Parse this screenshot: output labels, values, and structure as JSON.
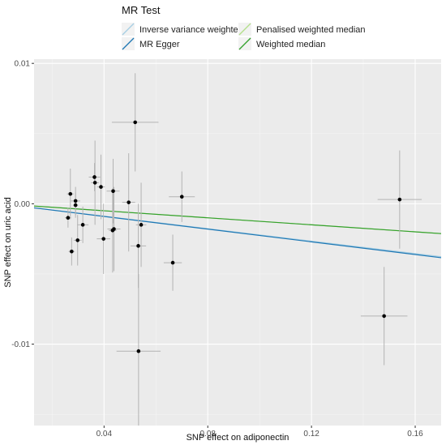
{
  "chart_data": {
    "type": "scatter",
    "title": "",
    "xlabel": "SNP effect on adiponectin",
    "ylabel": "SNP effect on uric acid",
    "xlim": [
      0.013,
      0.17
    ],
    "ylim": [
      -0.0158,
      0.0103
    ],
    "x_ticks": [
      0.04,
      0.08,
      0.12,
      0.16
    ],
    "x_tick_labels": [
      "0.04",
      "0.08",
      "0.12",
      "0.16"
    ],
    "y_ticks": [
      -0.01,
      0.0,
      0.01
    ],
    "y_tick_labels": [
      "-0.01",
      "0.00",
      "0.01"
    ],
    "grid": true,
    "legend": {
      "title": "MR Test",
      "placement": "top",
      "entries": [
        {
          "name": "Inverse variance weighted",
          "color": "#a6cee3"
        },
        {
          "name": "MR Egger",
          "color": "#1f78b4"
        },
        {
          "name": "Penalised weighted median",
          "color": "#b2df8a"
        },
        {
          "name": "Weighted median",
          "color": "#33a02c"
        }
      ]
    },
    "points": [
      {
        "x": 0.0261,
        "y": -0.001,
        "x_se": 0.0012,
        "y_se": 0.0007
      },
      {
        "x": 0.027,
        "y": 0.0007,
        "x_se": 0.0013,
        "y_se": 0.0018
      },
      {
        "x": 0.0275,
        "y": -0.0034,
        "x_se": 0.0012,
        "y_se": 0.001
      },
      {
        "x": 0.029,
        "y": 0.0002,
        "x_se": 0.0018,
        "y_se": 0.001
      },
      {
        "x": 0.029,
        "y": -0.0001,
        "x_se": 0.001,
        "y_se": 0.0009
      },
      {
        "x": 0.0298,
        "y": -0.0026,
        "x_se": 0.0015,
        "y_se": 0.0018
      },
      {
        "x": 0.0318,
        "y": -0.0015,
        "x_se": 0.0022,
        "y_se": 0.0013
      },
      {
        "x": 0.0363,
        "y": 0.0019,
        "x_se": 0.0022,
        "y_se": 0.001
      },
      {
        "x": 0.0365,
        "y": 0.0015,
        "x_se": 0.0015,
        "y_se": 0.003
      },
      {
        "x": 0.0388,
        "y": 0.0012,
        "x_se": 0.0015,
        "y_se": 0.0023
      },
      {
        "x": 0.0398,
        "y": -0.0025,
        "x_se": 0.0026,
        "y_se": 0.0025
      },
      {
        "x": 0.0435,
        "y": 0.0009,
        "x_se": 0.0025,
        "y_se": 0.0023
      },
      {
        "x": 0.0433,
        "y": -0.0019,
        "x_se": 0.0015,
        "y_se": 0.003
      },
      {
        "x": 0.0438,
        "y": -0.0018,
        "x_se": 0.0025,
        "y_se": 0.003
      },
      {
        "x": 0.0495,
        "y": 0.0001,
        "x_se": 0.0025,
        "y_se": 0.0035
      },
      {
        "x": 0.052,
        "y": 0.0058,
        "x_se": 0.009,
        "y_se": 0.0035
      },
      {
        "x": 0.0532,
        "y": -0.003,
        "x_se": 0.003,
        "y_se": 0.003
      },
      {
        "x": 0.0543,
        "y": -0.0015,
        "x_se": 0.002,
        "y_se": 0.003
      },
      {
        "x": 0.0533,
        "y": -0.0105,
        "x_se": 0.0085,
        "y_se": 0.0055
      },
      {
        "x": 0.0665,
        "y": -0.0042,
        "x_se": 0.0035,
        "y_se": 0.002
      },
      {
        "x": 0.07,
        "y": 0.0005,
        "x_se": 0.005,
        "y_se": 0.0018
      },
      {
        "x": 0.148,
        "y": -0.008,
        "x_se": 0.009,
        "y_se": 0.0035
      },
      {
        "x": 0.154,
        "y": 0.0003,
        "x_se": 0.0085,
        "y_se": 0.0035
      }
    ],
    "lines": [
      {
        "name": "Inverse variance weighted",
        "color": "#a6cee3",
        "slope": -0.0222,
        "intercept": 0.0
      },
      {
        "name": "MR Egger",
        "color": "#1f78b4",
        "slope": -0.0226,
        "intercept": 0.0
      },
      {
        "name": "Penalised weighted median",
        "color": "#b2df8a",
        "slope": -0.0125,
        "intercept": 0.0
      },
      {
        "name": "Weighted median",
        "color": "#33a02c",
        "slope": -0.0125,
        "intercept": 0.0
      }
    ]
  }
}
